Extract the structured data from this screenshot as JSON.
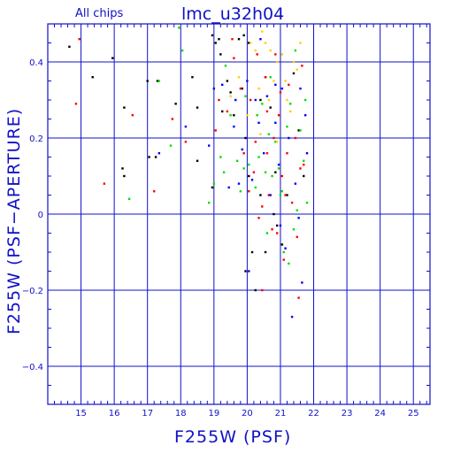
{
  "colors": {
    "axis": "#1010c8",
    "black": "#000000",
    "red": "#ff0000",
    "green": "#00e000",
    "blue": "#0000ff",
    "yellow": "#ffd000"
  },
  "chart_data": {
    "type": "scatter",
    "title": "lmc_u32h04",
    "subtitle": "All chips",
    "xlabel": "F255W (PSF)",
    "ylabel": "F255W (PSF−APERTURE)",
    "xlim": [
      14.0,
      25.5
    ],
    "ylim": [
      -0.5,
      0.5
    ],
    "grid": true,
    "x_major_ticks": [
      15,
      16,
      17,
      18,
      19,
      20,
      21,
      22,
      23,
      24,
      25
    ],
    "x_tick_labels": [
      "15",
      "16",
      "17",
      "18",
      "19",
      "20",
      "21",
      "22",
      "23",
      "24",
      "25"
    ],
    "y_major_ticks": [
      -0.4,
      -0.2,
      0,
      0.2,
      0.4
    ],
    "y_tick_labels": [
      "−0.4",
      "−0.2",
      "0",
      "0.2",
      "0.4"
    ],
    "series": [
      {
        "color": "black",
        "points": [
          [
            14.65,
            0.44
          ],
          [
            15.35,
            0.36
          ],
          [
            15.95,
            0.41
          ],
          [
            16.3,
            0.28
          ],
          [
            16.25,
            0.12
          ],
          [
            16.3,
            0.1
          ],
          [
            17.0,
            0.35
          ],
          [
            17.05,
            0.15
          ],
          [
            17.25,
            0.15
          ],
          [
            17.3,
            0.35
          ],
          [
            17.85,
            0.29
          ],
          [
            18.35,
            0.36
          ],
          [
            18.5,
            0.14
          ],
          [
            18.5,
            0.28
          ],
          [
            18.95,
            0.47
          ],
          [
            19.05,
            0.45
          ],
          [
            19.15,
            0.46
          ],
          [
            19.2,
            0.42
          ],
          [
            19.4,
            0.35
          ],
          [
            19.5,
            0.32
          ],
          [
            19.75,
            0.46
          ],
          [
            19.85,
            0.33
          ],
          [
            19.9,
            0.47
          ],
          [
            20.05,
            0.45
          ],
          [
            19.95,
            0.2
          ],
          [
            20.05,
            0.1
          ],
          [
            19.95,
            -0.15
          ],
          [
            20.15,
            -0.1
          ],
          [
            20.25,
            -0.2
          ],
          [
            20.4,
            0.3
          ],
          [
            20.55,
            0.36
          ],
          [
            20.7,
            0.28
          ],
          [
            20.85,
            0.11
          ],
          [
            20.9,
            -0.03
          ],
          [
            20.8,
            0.0
          ],
          [
            21.05,
            -0.08
          ],
          [
            21.2,
            0.05
          ],
          [
            21.4,
            0.37
          ],
          [
            21.55,
            0.22
          ],
          [
            21.7,
            0.1
          ],
          [
            20.55,
            -0.1
          ],
          [
            20.4,
            0.05
          ],
          [
            18.95,
            0.07
          ],
          [
            19.25,
            0.27
          ],
          [
            19.6,
            0.26
          ]
        ]
      },
      {
        "color": "red",
        "points": [
          [
            14.95,
            0.46
          ],
          [
            14.85,
            0.29
          ],
          [
            15.7,
            0.08
          ],
          [
            16.55,
            0.26
          ],
          [
            17.2,
            0.06
          ],
          [
            17.75,
            0.25
          ],
          [
            18.15,
            0.19
          ],
          [
            19.05,
            0.22
          ],
          [
            19.15,
            0.3
          ],
          [
            19.4,
            0.27
          ],
          [
            19.6,
            0.41
          ],
          [
            19.8,
            0.33
          ],
          [
            19.9,
            0.16
          ],
          [
            20.05,
            0.06
          ],
          [
            20.1,
            0.3
          ],
          [
            20.2,
            0.11
          ],
          [
            20.3,
            0.42
          ],
          [
            20.35,
            -0.01
          ],
          [
            20.45,
            0.02
          ],
          [
            20.55,
            0.36
          ],
          [
            20.6,
            0.16
          ],
          [
            20.65,
            0.05
          ],
          [
            20.75,
            -0.04
          ],
          [
            20.8,
            0.2
          ],
          [
            20.85,
            0.42
          ],
          [
            20.95,
            0.26
          ],
          [
            21.0,
            0.32
          ],
          [
            21.05,
            0.1
          ],
          [
            21.1,
            -0.12
          ],
          [
            21.2,
            0.16
          ],
          [
            21.25,
            0.34
          ],
          [
            21.35,
            0.03
          ],
          [
            21.45,
            0.2
          ],
          [
            21.5,
            -0.06
          ],
          [
            21.55,
            -0.22
          ],
          [
            21.6,
            0.12
          ],
          [
            21.65,
            0.39
          ],
          [
            21.7,
            0.13
          ],
          [
            20.45,
            -0.2
          ],
          [
            20.25,
            0.19
          ],
          [
            19.55,
            0.46
          ],
          [
            20.6,
            0.27
          ],
          [
            21.15,
            0.05
          ],
          [
            20.9,
            -0.05
          ]
        ]
      },
      {
        "color": "green",
        "points": [
          [
            16.45,
            0.04
          ],
          [
            17.35,
            0.35
          ],
          [
            17.95,
            0.49
          ],
          [
            18.05,
            0.43
          ],
          [
            17.7,
            0.18
          ],
          [
            19.0,
            0.08
          ],
          [
            19.2,
            0.15
          ],
          [
            19.35,
            0.39
          ],
          [
            19.5,
            0.26
          ],
          [
            19.7,
            0.14
          ],
          [
            19.8,
            0.06
          ],
          [
            19.9,
            0.12
          ],
          [
            20.05,
            0.13
          ],
          [
            20.25,
            0.07
          ],
          [
            20.35,
            0.15
          ],
          [
            20.45,
            0.29
          ],
          [
            20.55,
            0.11
          ],
          [
            20.65,
            0.21
          ],
          [
            20.75,
            0.1
          ],
          [
            20.85,
            0.19
          ],
          [
            20.95,
            0.12
          ],
          [
            21.05,
            0.06
          ],
          [
            21.1,
            -0.1
          ],
          [
            21.2,
            0.23
          ],
          [
            21.3,
            0.29
          ],
          [
            21.4,
            -0.04
          ],
          [
            21.45,
            0.43
          ],
          [
            21.5,
            0.01
          ],
          [
            21.6,
            0.22
          ],
          [
            21.7,
            0.14
          ],
          [
            21.75,
            0.3
          ],
          [
            21.8,
            0.03
          ],
          [
            20.6,
            -0.05
          ],
          [
            21.0,
            0.05
          ],
          [
            20.7,
            0.36
          ],
          [
            20.3,
            0.26
          ],
          [
            19.95,
            0.31
          ],
          [
            18.85,
            0.03
          ],
          [
            19.3,
            0.11
          ],
          [
            21.25,
            -0.13
          ]
        ]
      },
      {
        "color": "blue",
        "points": [
          [
            17.35,
            0.16
          ],
          [
            18.15,
            0.23
          ],
          [
            18.85,
            0.18
          ],
          [
            19.0,
            0.33
          ],
          [
            19.25,
            0.34
          ],
          [
            19.6,
            0.23
          ],
          [
            19.65,
            0.3
          ],
          [
            19.85,
            0.17
          ],
          [
            20.0,
            0.35
          ],
          [
            20.05,
            -0.15
          ],
          [
            20.15,
            0.09
          ],
          [
            20.25,
            0.3
          ],
          [
            20.35,
            0.24
          ],
          [
            20.5,
            0.16
          ],
          [
            20.6,
            0.31
          ],
          [
            20.7,
            0.05
          ],
          [
            20.85,
            0.34
          ],
          [
            20.95,
            0.13
          ],
          [
            21.05,
            0.33
          ],
          [
            21.15,
            -0.09
          ],
          [
            21.25,
            0.2
          ],
          [
            21.35,
            -0.27
          ],
          [
            21.45,
            0.08
          ],
          [
            21.55,
            -0.01
          ],
          [
            21.6,
            0.33
          ],
          [
            21.65,
            -0.18
          ],
          [
            21.75,
            0.26
          ],
          [
            21.8,
            0.16
          ],
          [
            19.45,
            0.07
          ],
          [
            20.85,
            0.24
          ],
          [
            21.0,
            -0.03
          ],
          [
            20.4,
            0.46
          ],
          [
            19.75,
            0.08
          ]
        ]
      },
      {
        "color": "yellow",
        "points": [
          [
            19.3,
            0.5
          ],
          [
            19.75,
            0.36
          ],
          [
            20.1,
            0.45
          ],
          [
            20.35,
            0.33
          ],
          [
            20.45,
            0.48
          ],
          [
            20.55,
            0.45
          ],
          [
            20.7,
            0.43
          ],
          [
            20.8,
            0.35
          ],
          [
            20.9,
            0.4
          ],
          [
            21.05,
            0.42
          ],
          [
            21.15,
            0.35
          ],
          [
            21.2,
            0.3
          ],
          [
            21.3,
            0.27
          ],
          [
            21.5,
            0.38
          ],
          [
            20.25,
            0.43
          ],
          [
            20.0,
            0.26
          ],
          [
            20.65,
            0.3
          ],
          [
            21.6,
            0.45
          ],
          [
            20.9,
            0.19
          ],
          [
            21.4,
            0.4
          ],
          [
            19.5,
            0.31
          ],
          [
            20.4,
            0.21
          ]
        ]
      }
    ]
  }
}
